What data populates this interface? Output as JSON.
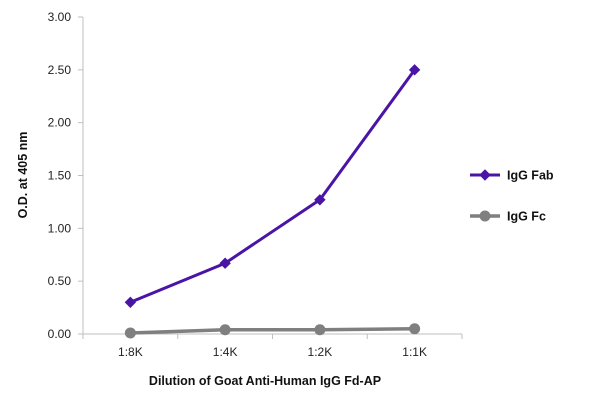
{
  "chart_data": {
    "type": "line",
    "title": "",
    "xlabel": "Dilution of Goat Anti-Human IgG Fd-AP",
    "ylabel": "O.D. at 405 nm",
    "categories": [
      "1:8K",
      "1:4K",
      "1:2K",
      "1:1K"
    ],
    "ylim": [
      0,
      3.0
    ],
    "yticks": [
      "0.00",
      "0.50",
      "1.00",
      "1.50",
      "2.00",
      "2.50",
      "3.00"
    ],
    "grid": false,
    "legend_position": "right",
    "series": [
      {
        "name": "IgG Fab",
        "values": [
          0.3,
          0.67,
          1.27,
          2.5
        ],
        "color": "#4a14a6",
        "marker": "diamond"
      },
      {
        "name": "IgG Fc",
        "values": [
          0.01,
          0.04,
          0.04,
          0.05
        ],
        "color": "#7f7f7f",
        "marker": "circle"
      }
    ]
  }
}
